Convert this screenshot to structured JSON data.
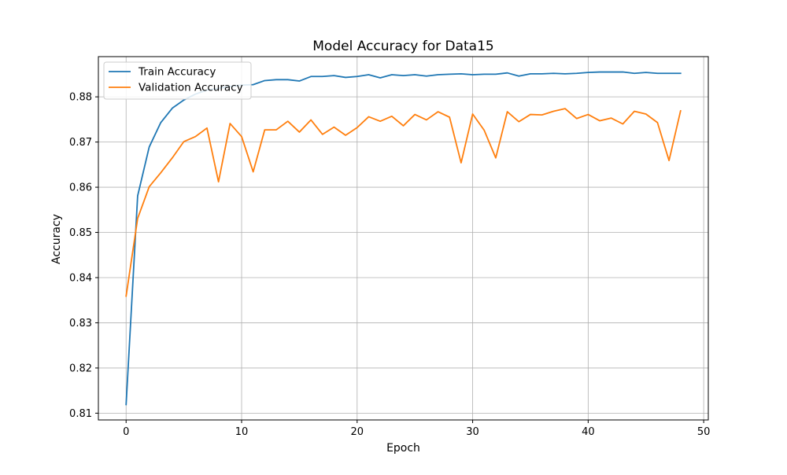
{
  "chart_data": {
    "type": "line",
    "title": "Model Accuracy for Data15",
    "xlabel": "Epoch",
    "ylabel": "Accuracy",
    "xlim": [
      -2.4,
      50.4
    ],
    "ylim": [
      0.8085,
      0.8889
    ],
    "x_ticks": [
      0,
      10,
      20,
      30,
      40,
      50
    ],
    "y_ticks": [
      0.81,
      0.82,
      0.83,
      0.84,
      0.85,
      0.86,
      0.87,
      0.88
    ],
    "y_tick_labels": [
      "0.81",
      "0.82",
      "0.83",
      "0.84",
      "0.85",
      "0.86",
      "0.87",
      "0.88"
    ],
    "grid": true,
    "legend_position": "upper-left",
    "x": [
      0,
      1,
      2,
      3,
      4,
      5,
      6,
      7,
      8,
      9,
      10,
      11,
      12,
      13,
      14,
      15,
      16,
      17,
      18,
      19,
      20,
      21,
      22,
      23,
      24,
      25,
      26,
      27,
      28,
      29,
      30,
      31,
      32,
      33,
      34,
      35,
      36,
      37,
      38,
      39,
      40,
      41,
      42,
      43,
      44,
      45,
      46,
      47,
      48
    ],
    "series": [
      {
        "name": "Train Accuracy",
        "color": "#1f77b4",
        "values": [
          0.8119,
          0.8581,
          0.8689,
          0.8743,
          0.8775,
          0.8793,
          0.8806,
          0.8815,
          0.8819,
          0.8823,
          0.8826,
          0.8827,
          0.8836,
          0.8838,
          0.8838,
          0.8835,
          0.8845,
          0.8845,
          0.8847,
          0.8843,
          0.8845,
          0.8849,
          0.8842,
          0.8849,
          0.8847,
          0.8849,
          0.8846,
          0.8849,
          0.885,
          0.8851,
          0.8849,
          0.885,
          0.885,
          0.8853,
          0.8846,
          0.8851,
          0.8851,
          0.8852,
          0.8851,
          0.8852,
          0.8854,
          0.8855,
          0.8855,
          0.8855,
          0.8852,
          0.8854,
          0.8852,
          0.8852,
          0.8852
        ]
      },
      {
        "name": "Validation Accuracy",
        "color": "#ff7f0e",
        "values": [
          0.8359,
          0.8531,
          0.8601,
          0.8632,
          0.8665,
          0.8701,
          0.8712,
          0.8731,
          0.8612,
          0.8741,
          0.8712,
          0.8634,
          0.8727,
          0.8727,
          0.8746,
          0.8722,
          0.8749,
          0.8717,
          0.8733,
          0.8715,
          0.8732,
          0.8756,
          0.8746,
          0.8757,
          0.8736,
          0.8761,
          0.8749,
          0.8767,
          0.8755,
          0.8654,
          0.8762,
          0.8726,
          0.8665,
          0.8767,
          0.8745,
          0.8761,
          0.876,
          0.8768,
          0.8774,
          0.8752,
          0.8761,
          0.8747,
          0.8753,
          0.874,
          0.8768,
          0.8762,
          0.8743,
          0.8659,
          0.8769
        ]
      }
    ]
  }
}
